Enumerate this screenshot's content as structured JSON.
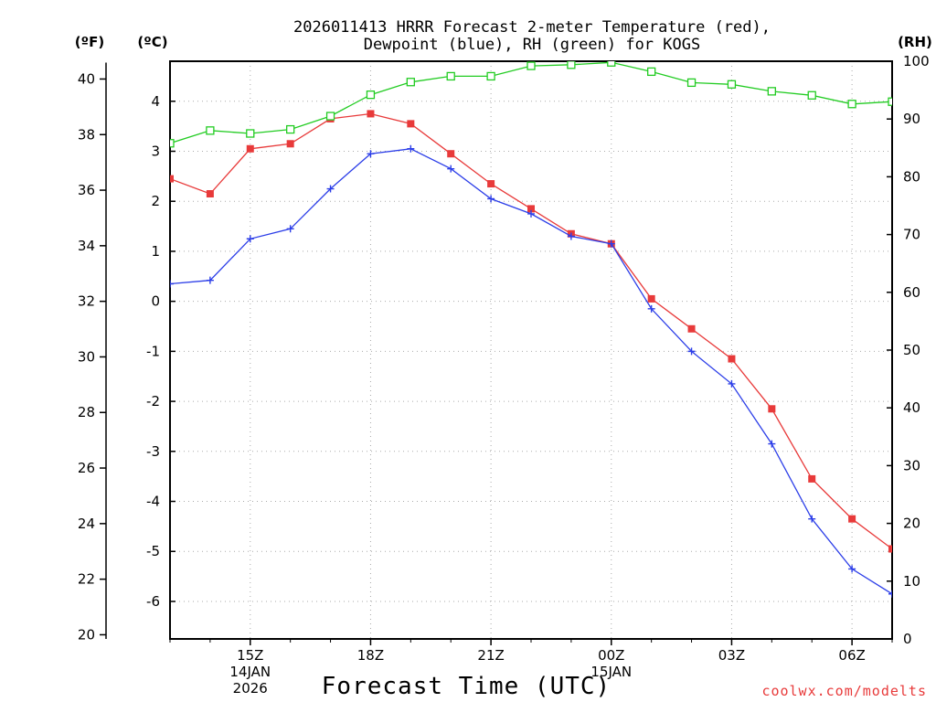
{
  "chart_data": {
    "type": "line",
    "title": [
      "2026011413 HRRR Forecast 2-meter Temperature (red),",
      "Dewpoint (blue), RH (green) for KOGS"
    ],
    "xlabel": "Forecast Time (UTC)",
    "credit": "coolwx.com/modelts",
    "units": {
      "fahrenheit": "(ºF)",
      "celsius": "(ºC)",
      "rh": "(RH)"
    },
    "x_hours": [
      13,
      14,
      15,
      16,
      17,
      18,
      19,
      20,
      21,
      22,
      23,
      24,
      25,
      26,
      27,
      28,
      29,
      30,
      31
    ],
    "xlim": [
      13,
      31
    ],
    "x_ticks": [
      {
        "hour": 15,
        "lines": [
          "15Z",
          "14JAN",
          "2026"
        ]
      },
      {
        "hour": 18,
        "lines": [
          "18Z"
        ]
      },
      {
        "hour": 21,
        "lines": [
          "21Z"
        ]
      },
      {
        "hour": 24,
        "lines": [
          "00Z",
          "15JAN"
        ]
      },
      {
        "hour": 27,
        "lines": [
          "03Z"
        ]
      },
      {
        "hour": 30,
        "lines": [
          "06Z"
        ]
      }
    ],
    "y_celsius": {
      "lim": [
        -6.75,
        4.8
      ],
      "ticks": [
        -6,
        -5,
        -4,
        -3,
        -2,
        -1,
        0,
        1,
        2,
        3,
        4
      ],
      "labels": [
        "-6",
        "-5",
        "-4",
        "-3",
        "-2",
        "-1",
        "0",
        "1",
        "2",
        "3",
        "4"
      ]
    },
    "y_fahrenheit": {
      "ticks": [
        20,
        22,
        24,
        26,
        28,
        30,
        32,
        34,
        36,
        38,
        40
      ],
      "labels": [
        "20",
        "22",
        "24",
        "26",
        "28",
        "30",
        "32",
        "34",
        "36",
        "38",
        "40"
      ]
    },
    "y_rh": {
      "lim": [
        0,
        100
      ],
      "ticks": [
        0,
        10,
        20,
        30,
        40,
        50,
        60,
        70,
        80,
        90,
        100
      ],
      "labels": [
        "0",
        "10",
        "20",
        "30",
        "40",
        "50",
        "60",
        "70",
        "80",
        "90",
        "100"
      ]
    },
    "series": [
      {
        "name": "Temperature",
        "axis": "celsius",
        "color": "#e83a3a",
        "marker": "filled-square",
        "values": [
          2.45,
          2.15,
          3.05,
          3.15,
          3.65,
          3.75,
          3.55,
          2.95,
          2.35,
          1.85,
          1.35,
          1.15,
          0.05,
          -0.55,
          -1.15,
          -2.15,
          -3.55,
          -4.35,
          -4.95
        ]
      },
      {
        "name": "Dewpoint",
        "axis": "celsius",
        "color": "#2c3ee8",
        "marker": "plus",
        "values": [
          0.35,
          0.42,
          1.25,
          1.45,
          2.25,
          2.95,
          3.05,
          2.65,
          2.05,
          1.75,
          1.3,
          1.15,
          -0.15,
          -1.0,
          -1.65,
          -2.85,
          -4.35,
          -5.35,
          -5.85
        ]
      },
      {
        "name": "RH",
        "axis": "rh",
        "color": "#22cc22",
        "marker": "open-square",
        "values": [
          85.8,
          88.0,
          87.5,
          88.2,
          90.5,
          94.2,
          96.4,
          97.4,
          97.4,
          99.2,
          99.4,
          99.8,
          98.2,
          96.3,
          96.0,
          94.8,
          94.1,
          92.6,
          93.0
        ]
      }
    ]
  }
}
